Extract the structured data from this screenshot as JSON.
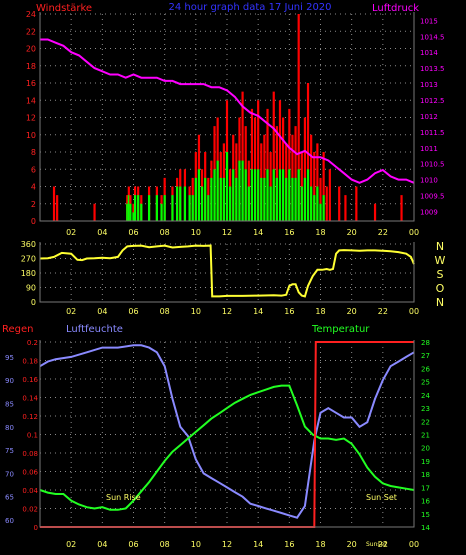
{
  "title": "24 hour graph data 17 Juni 2020",
  "colors": {
    "background": "#000000",
    "axis": "#777777",
    "grid": "#8a8a8a",
    "tick_label": "#ffff66",
    "wind_title": "#ff2020",
    "wind_avg": "#ff0000",
    "wind_gust": "#00ff00",
    "pressure": "#ff00ff",
    "direction": "#ffff33",
    "rain": "#ff2020",
    "humidity": "#8a8aff",
    "temperature": "#22ff22",
    "sun_label": "#ffff66",
    "compass": "#ffff66",
    "title_blue": "#3333ff"
  },
  "chart_data": [
    {
      "id": "wind",
      "type": "bar",
      "title": "24 hour graph data 17 Juni 2020",
      "ylabel": "Windstärke",
      "y2label": "Luftdruck",
      "x_ticks": [
        "02",
        "04",
        "06",
        "08",
        "10",
        "12",
        "14",
        "16",
        "18",
        "20",
        "22",
        "00"
      ],
      "ylim": [
        0,
        24
      ],
      "y_ticks": [
        "0",
        "2",
        "4",
        "6",
        "8",
        "10",
        "12",
        "14",
        "16",
        "18",
        "20",
        "22",
        "24"
      ],
      "y2lim": [
        1008.7,
        1015.2
      ],
      "y2_ticks": [
        "1009",
        "1009.5",
        "1010",
        "1010.5",
        "1011",
        "1011.5",
        "1012",
        "1012.5",
        "1013",
        "1013.5",
        "1014",
        "1014.5",
        "1015"
      ],
      "grid": true,
      "x_hours": [
        0.9,
        1.1,
        3.5,
        5.6,
        5.7,
        5.8,
        6.0,
        6.1,
        6.3,
        6.5,
        7.0,
        7.5,
        7.8,
        8.0,
        8.5,
        8.8,
        9.0,
        9.3,
        9.6,
        9.8,
        10.0,
        10.2,
        10.4,
        10.6,
        10.8,
        11.0,
        11.2,
        11.4,
        11.6,
        11.8,
        12.0,
        12.2,
        12.4,
        12.6,
        12.8,
        13.0,
        13.2,
        13.4,
        13.6,
        13.8,
        14.0,
        14.2,
        14.4,
        14.6,
        14.8,
        15.0,
        15.2,
        15.4,
        15.6,
        15.8,
        16.0,
        16.2,
        16.4,
        16.6,
        16.8,
        17.0,
        17.2,
        17.4,
        17.6,
        17.8,
        18.0,
        18.2,
        18.4,
        18.6,
        19.2,
        19.6,
        20.3,
        21.5,
        23.2
      ],
      "avg_values": [
        4,
        3,
        2,
        3,
        4,
        3,
        2,
        4,
        4,
        3,
        4,
        4,
        3,
        5,
        4,
        5,
        6,
        6,
        4,
        5,
        8,
        10,
        6,
        8,
        5,
        7,
        11,
        12,
        8,
        9,
        14,
        6,
        10,
        9,
        12,
        15,
        11,
        7,
        13,
        12,
        14,
        9,
        10,
        13,
        8,
        15,
        11,
        14,
        12,
        9,
        13,
        10,
        11,
        24,
        8,
        12,
        16,
        10,
        8,
        9,
        5,
        8,
        4,
        6,
        4,
        3,
        4,
        2,
        3
      ],
      "gust_values": [
        0,
        0,
        0,
        2,
        3,
        2,
        1,
        3,
        3,
        2,
        3,
        3,
        2,
        3,
        3,
        4,
        4,
        4,
        3,
        3,
        5,
        6,
        4,
        5,
        3,
        5,
        6,
        7,
        5,
        5,
        8,
        4,
        6,
        5,
        7,
        7,
        6,
        4,
        6,
        6,
        6,
        5,
        5,
        6,
        4,
        6,
        5,
        6,
        6,
        5,
        6,
        5,
        5,
        6,
        4,
        5,
        6,
        4,
        3,
        4,
        2,
        3,
        0,
        0,
        0,
        0,
        0,
        0,
        0
      ],
      "pressure_x": [
        0.0,
        0.5,
        1.0,
        1.5,
        2.0,
        2.5,
        3.0,
        3.5,
        4.0,
        4.5,
        5.0,
        5.5,
        6.0,
        6.5,
        7.0,
        7.5,
        8.0,
        8.5,
        9.0,
        9.5,
        10.0,
        10.5,
        11.0,
        11.5,
        12.0,
        12.5,
        13.0,
        13.5,
        14.0,
        14.5,
        15.0,
        15.5,
        16.0,
        16.5,
        17.0,
        17.5,
        18.0,
        18.5,
        19.0,
        19.5,
        20.0,
        20.5,
        21.0,
        21.5,
        22.0,
        22.5,
        23.0,
        23.5,
        24.0
      ],
      "pressure_values": [
        1014.4,
        1014.4,
        1014.3,
        1014.2,
        1014.0,
        1013.9,
        1013.7,
        1013.5,
        1013.4,
        1013.3,
        1013.3,
        1013.2,
        1013.3,
        1013.2,
        1013.2,
        1013.2,
        1013.1,
        1013.1,
        1013.0,
        1013.0,
        1013.0,
        1013.0,
        1012.9,
        1012.9,
        1012.8,
        1012.6,
        1012.3,
        1012.1,
        1012.0,
        1011.8,
        1011.6,
        1011.3,
        1011.0,
        1010.8,
        1010.9,
        1010.7,
        1010.7,
        1010.6,
        1010.4,
        1010.2,
        1010.0,
        1009.9,
        1010.0,
        1010.2,
        1010.3,
        1010.1,
        1010.0,
        1010.0,
        1009.9
      ]
    },
    {
      "id": "direction",
      "type": "line",
      "title": "",
      "ylim": [
        0,
        360
      ],
      "y_ticks": [
        "0",
        "90",
        "180",
        "270",
        "360"
      ],
      "compass": [
        "N",
        "W",
        "S",
        "O",
        "N"
      ],
      "x_ticks": [
        "02",
        "04",
        "06",
        "08",
        "10",
        "12",
        "14",
        "16",
        "18",
        "20",
        "22",
        "00"
      ],
      "grid": true,
      "x": [
        0.0,
        0.5,
        0.9,
        1.4,
        2.0,
        2.4,
        2.7,
        3.0,
        3.5,
        4.0,
        4.5,
        5.0,
        5.3,
        5.6,
        6.0,
        6.5,
        7.0,
        7.5,
        8.0,
        8.5,
        9.0,
        9.5,
        10.0,
        10.5,
        10.95,
        11.05,
        11.5,
        12.0,
        13.0,
        14.0,
        15.0,
        15.5,
        15.8,
        16.0,
        16.2,
        16.4,
        16.6,
        16.8,
        17.0,
        17.2,
        17.5,
        17.8,
        18.1,
        18.4,
        18.6,
        18.8,
        19.0,
        19.2,
        19.5,
        20.0,
        20.5,
        21.0,
        21.5,
        22.0,
        22.5,
        23.0,
        23.5,
        23.8,
        24.0
      ],
      "values": [
        270,
        272,
        280,
        305,
        300,
        262,
        260,
        270,
        272,
        275,
        272,
        280,
        320,
        345,
        348,
        350,
        340,
        345,
        350,
        338,
        342,
        345,
        350,
        348,
        350,
        35,
        35,
        38,
        38,
        40,
        42,
        40,
        45,
        100,
        110,
        110,
        60,
        40,
        35,
        100,
        160,
        200,
        200,
        205,
        200,
        205,
        300,
        320,
        322,
        320,
        318,
        320,
        320,
        318,
        315,
        310,
        300,
        280,
        235
      ]
    },
    {
      "id": "climate",
      "type": "line",
      "title": "",
      "ylabel_left_outer": "Regen",
      "ylabel_left_inner": "Luftfeuchte",
      "ylabel_right": "Temperatur",
      "rain_ylim": [
        0,
        0.2
      ],
      "rain_ticks": [
        "0",
        "0.02",
        "0.04",
        "0.06",
        "0.08",
        "0.1",
        "0.12",
        "0.14",
        "0.16",
        "0.18",
        "0.2"
      ],
      "humidity_ylim": [
        58.5,
        98.2
      ],
      "humidity_ticks": [
        "60",
        "65",
        "70",
        "75",
        "80",
        "85",
        "90",
        "95"
      ],
      "temperature_ylim": [
        14,
        28
      ],
      "temperature_ticks": [
        "14",
        "15",
        "16",
        "17",
        "18",
        "19",
        "20",
        "21",
        "22",
        "23",
        "24",
        "25",
        "26",
        "27",
        "28"
      ],
      "x_ticks": [
        "02",
        "04",
        "06",
        "08",
        "10",
        "12",
        "14",
        "16",
        "18",
        "20",
        "22",
        "00"
      ],
      "grid": true,
      "annotations": {
        "sunrise": "Sun Rise",
        "sunset": "Sun Set",
        "small": "Sunset"
      },
      "series": [
        {
          "name": "Luftfeuchte",
          "x": [
            0.0,
            0.5,
            1.0,
            2.0,
            3.0,
            4.0,
            5.0,
            6.0,
            6.5,
            7.0,
            7.5,
            8.0,
            8.5,
            9.0,
            9.5,
            10.0,
            10.5,
            11.0,
            11.5,
            12.0,
            12.5,
            13.0,
            13.5,
            14.0,
            14.5,
            15.0,
            15.5,
            16.0,
            16.5,
            17.0,
            17.3,
            17.6,
            18.0,
            18.5,
            19.0,
            19.5,
            20.0,
            20.5,
            21.0,
            21.5,
            22.0,
            22.5,
            23.0,
            23.5,
            24.0
          ],
          "values": [
            93,
            94,
            94.5,
            95,
            96,
            97,
            97,
            97.5,
            97.5,
            97,
            96,
            93,
            86,
            80,
            78,
            73,
            70,
            69,
            68,
            67,
            66,
            65,
            63.5,
            63,
            62.5,
            62,
            61.5,
            61,
            60.5,
            63,
            70,
            77,
            83,
            84,
            83,
            82,
            82,
            80,
            81,
            86,
            90,
            93,
            94,
            95,
            96
          ]
        },
        {
          "name": "Temperatur",
          "x": [
            0.0,
            0.5,
            1.0,
            1.5,
            2.0,
            2.5,
            3.0,
            3.5,
            4.0,
            4.5,
            5.0,
            5.5,
            6.0,
            6.5,
            7.0,
            7.5,
            8.0,
            8.5,
            9.0,
            9.5,
            10.0,
            10.5,
            11.0,
            11.5,
            12.0,
            12.5,
            13.0,
            13.5,
            14.0,
            14.5,
            15.0,
            15.5,
            16.0,
            16.5,
            17.0,
            17.5,
            18.0,
            18.5,
            19.0,
            19.5,
            20.0,
            20.5,
            21.0,
            21.5,
            22.0,
            22.5,
            23.0,
            23.5,
            24.0
          ],
          "values": [
            16.8,
            16.6,
            16.5,
            16.5,
            16.0,
            15.7,
            15.5,
            15.4,
            15.5,
            15.3,
            15.3,
            15.4,
            16.0,
            16.7,
            17.4,
            18.2,
            19.0,
            19.7,
            20.2,
            20.7,
            21.2,
            21.7,
            22.2,
            22.6,
            23.0,
            23.4,
            23.7,
            24.0,
            24.2,
            24.4,
            24.6,
            24.7,
            24.7,
            23.2,
            21.6,
            21.0,
            20.7,
            20.7,
            20.6,
            20.7,
            20.3,
            19.5,
            18.5,
            17.8,
            17.3,
            17.1,
            17.0,
            16.9,
            16.8
          ]
        },
        {
          "name": "Regen",
          "x": [
            0.0,
            17.6,
            17.7,
            24.0
          ],
          "values": [
            0.0,
            0.0,
            0.2,
            0.2
          ]
        }
      ]
    }
  ]
}
